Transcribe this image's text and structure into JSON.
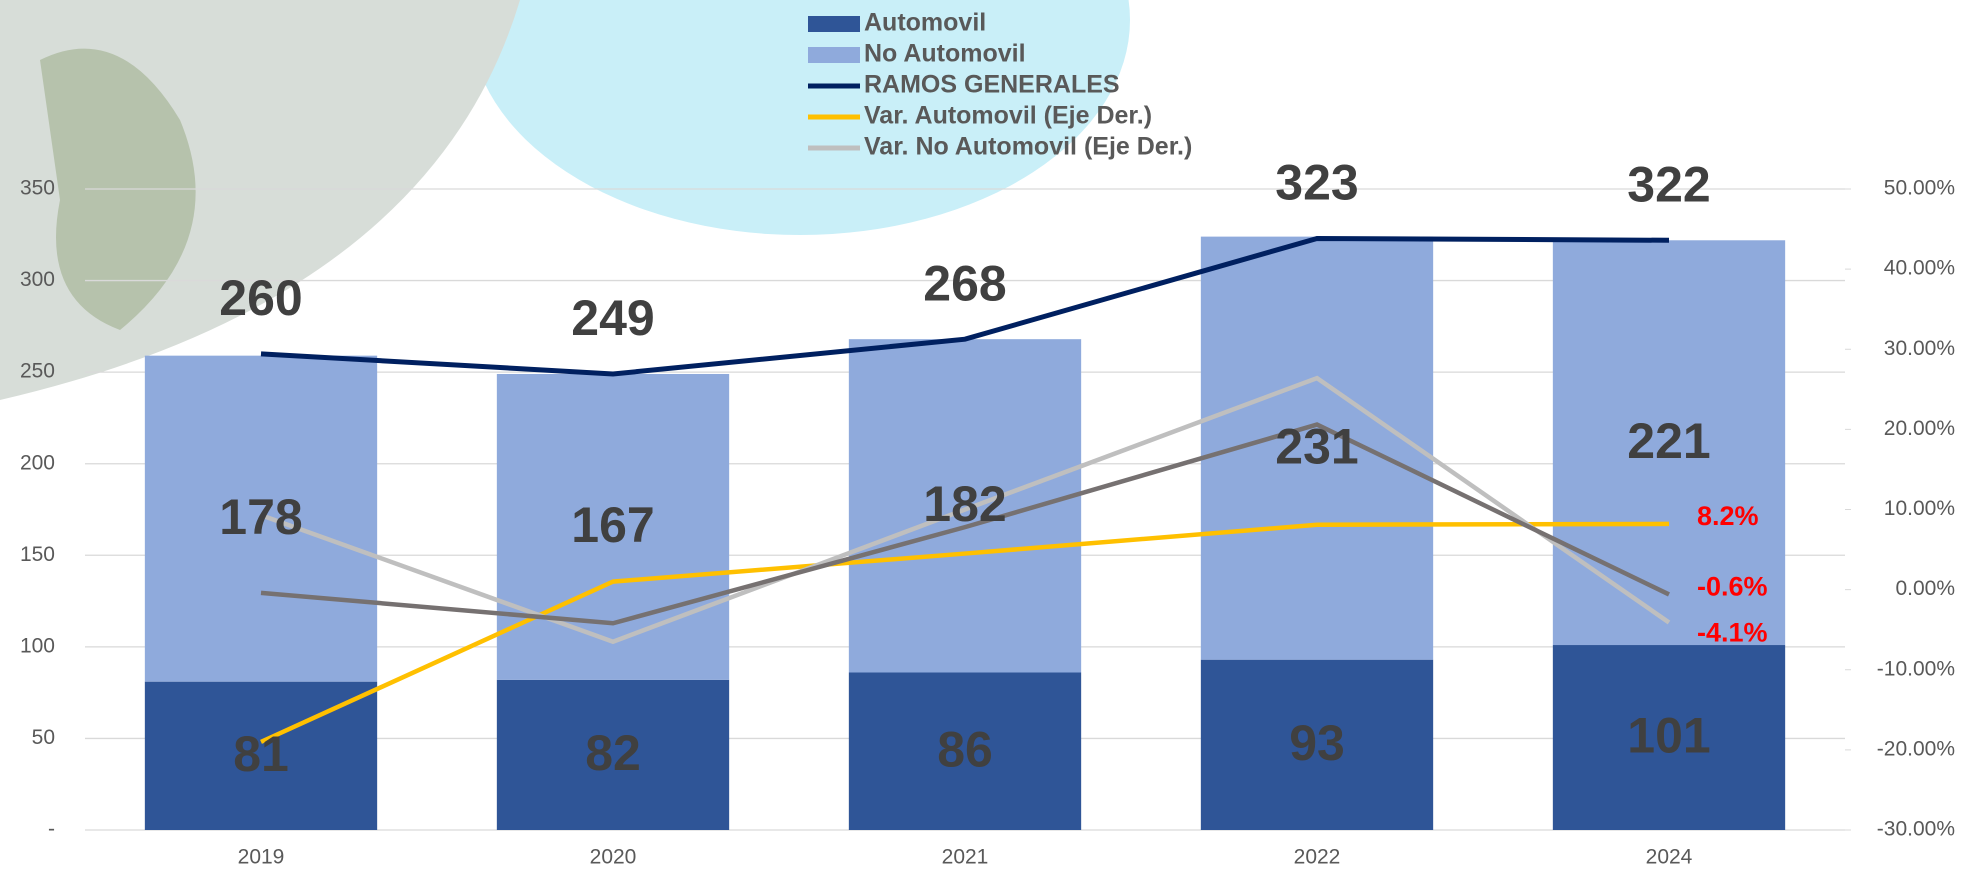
{
  "chart_data": {
    "type": "bar",
    "categories": [
      "2019",
      "2020",
      "2021",
      "2022",
      "2024"
    ],
    "ylim": [
      0,
      350
    ],
    "yticks": [
      {
        "value": 0,
        "label": "-"
      },
      50,
      100,
      150,
      200,
      250,
      300,
      350
    ],
    "y2lim": [
      -30,
      50
    ],
    "y2ticks": [
      {
        "value": -30,
        "label": "-30.00%"
      },
      {
        "value": -20,
        "label": "-20.00%"
      },
      {
        "value": -10,
        "label": "-10.00%"
      },
      {
        "value": 0,
        "label": "0.00%"
      },
      {
        "value": 10,
        "label": "10.00%"
      },
      {
        "value": 20,
        "label": "20.00%"
      },
      {
        "value": 30,
        "label": "30.00%"
      },
      {
        "value": 40,
        "label": "40.00%"
      },
      {
        "value": 50,
        "label": "50.00%"
      }
    ],
    "grid": true,
    "series": [
      {
        "name": "Automovil",
        "type": "bar",
        "color": "#2f5597",
        "values": [
          81,
          82,
          86,
          93,
          101
        ]
      },
      {
        "name": "No Automovil",
        "type": "bar",
        "color": "#8faadc",
        "values": [
          178,
          167,
          182,
          231,
          221
        ]
      },
      {
        "name": "RAMOS GENERALES",
        "type": "line",
        "color": "#002060",
        "values": [
          260,
          249,
          268,
          323,
          322
        ]
      },
      {
        "name": "Var. Automovil (Eje Der.)",
        "type": "line",
        "axis": "y2",
        "color": "#ffc000",
        "values": [
          -19,
          1,
          4.5,
          8.1,
          8.2
        ],
        "value_labels": [
          null,
          null,
          null,
          null,
          "8.2%"
        ]
      },
      {
        "name": "Var. No Automovil (Eje Der.)",
        "type": "line",
        "axis": "y2",
        "color": "#bfbfbf",
        "values": [
          9.3,
          -6.5,
          10,
          26.4,
          -4.1
        ],
        "value_labels": [
          null,
          null,
          null,
          null,
          "-4.1%"
        ]
      },
      {
        "type": "line",
        "axis": "y2",
        "color": "#767171",
        "values": [
          -0.4,
          -4.2,
          7.8,
          20.6,
          -0.6
        ],
        "value_labels": [
          null,
          null,
          null,
          null,
          "-0.6%"
        ]
      }
    ]
  }
}
